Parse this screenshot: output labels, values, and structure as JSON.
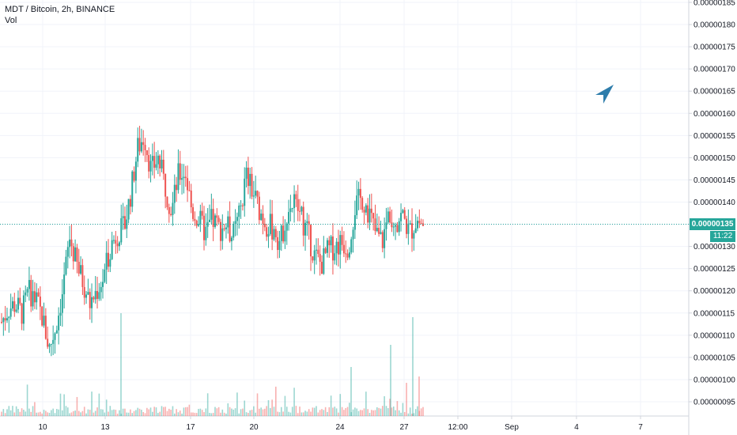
{
  "legend": {
    "title": "MDT / Bitcoin, 2h, BINANCE",
    "volume_label": "Vol"
  },
  "price_axis": {
    "ticks": [
      "0.00000095",
      "0.00000100",
      "0.00000105",
      "0.00000110",
      "0.00000115",
      "0.00000120",
      "0.00000125",
      "0.00000130",
      "0.00000135",
      "0.00000140",
      "0.00000145",
      "0.00000150",
      "0.00000155",
      "0.00000160",
      "0.00000165",
      "0.00000170",
      "0.00000175",
      "0.00000180",
      "0.00000185"
    ],
    "current_price": "0.00000135",
    "countdown": "11:22"
  },
  "time_axis": {
    "ticks": [
      "10",
      "13",
      "17",
      "20",
      "24",
      "27",
      "12:00",
      "Sep",
      "4",
      "7"
    ]
  },
  "colors": {
    "up": "#26a69a",
    "down": "#ef5350",
    "grid": "#f0f3fa",
    "axis_text": "#131722",
    "arrow": "#2e7dab"
  },
  "chart_data": {
    "type": "candlestick",
    "symbol": "MDT / Bitcoin",
    "interval": "2h",
    "exchange": "BINANCE",
    "x_range": [
      "Aug 8",
      "Sep 8"
    ],
    "ylim": [
      9.3e-07,
      1.85e-06
    ],
    "last_price": 1.35e-06,
    "grid": true,
    "candles_approx_close": [
      1.13e-06,
      1.16e-06,
      1.17e-06,
      1.15e-06,
      1.2e-06,
      1.18e-06,
      1.14e-06,
      1.07e-06,
      1.12e-06,
      1.2e-06,
      1.32e-06,
      1.26e-06,
      1.22e-06,
      1.17e-06,
      1.2e-06,
      1.23e-06,
      1.3e-06,
      1.33e-06,
      1.34e-06,
      1.42e-06,
      1.52e-06,
      1.55e-06,
      1.47e-06,
      1.5e-06,
      1.44e-06,
      1.38e-06,
      1.46e-06,
      1.47e-06,
      1.38e-06,
      1.36e-06,
      1.33e-06,
      1.36e-06,
      1.34e-06,
      1.35e-06,
      1.32e-06,
      1.37e-06,
      1.46e-06,
      1.42e-06,
      1.38e-06,
      1.35e-06,
      1.34e-06,
      1.31e-06,
      1.38e-06,
      1.4e-06,
      1.37e-06,
      1.33e-06,
      1.28e-06,
      1.26e-06,
      1.29e-06,
      1.3e-06,
      1.31e-06,
      1.3e-06,
      1.39e-06,
      1.41e-06,
      1.38e-06,
      1.33e-06,
      1.31e-06,
      1.38e-06,
      1.36e-06,
      1.37e-06,
      1.33e-06,
      1.36e-06,
      1.35e-06
    ],
    "volume_spikes": [
      {
        "x": "Aug 13",
        "relative": 0.9
      },
      {
        "x": "Aug 24",
        "relative": 0.55
      },
      {
        "x": "Aug 27",
        "relative": 0.95
      }
    ]
  }
}
